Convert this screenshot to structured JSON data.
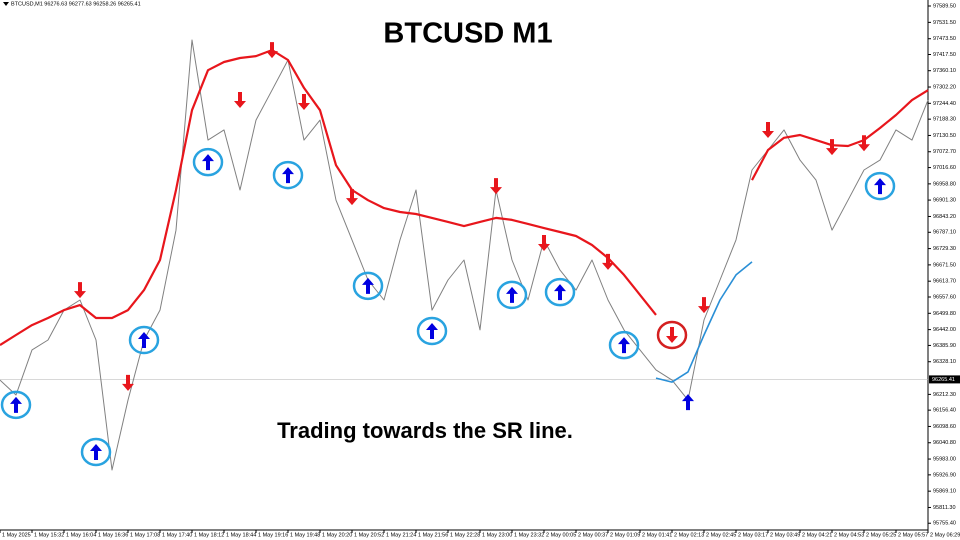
{
  "chart_data": {
    "type": "line",
    "header": "BTCUSD,M1 96276.63 96277.63 96258.26 96265.41",
    "title": "BTCUSD M1",
    "annotation": "Trading towards the SR line.",
    "categories": [
      "1 May 2025",
      null,
      "1 May 15:32",
      null,
      "1 May 16:04",
      null,
      "1 May 16:36",
      null,
      "1 May 17:08",
      null,
      "1 May 17:40",
      null,
      "1 May 18:12",
      null,
      "1 May 18:44",
      null,
      "1 May 19:16",
      null,
      "1 May 19:48",
      null,
      "1 May 20:20",
      null,
      "1 May 20:52",
      null,
      "1 May 21:24",
      null,
      "1 May 21:56",
      null,
      "1 May 22:28",
      null,
      "1 May 23:00",
      null,
      "1 May 23:32",
      null,
      "2 May 00:05",
      null,
      "2 May 00:37",
      null,
      "2 May 01:09",
      null,
      "2 May 01:41",
      null,
      "2 May 02:13",
      null,
      "2 May 02:45",
      null,
      "2 May 03:17",
      null,
      "2 May 03:49",
      null,
      "2 May 04:21",
      null,
      "2 May 04:53",
      null,
      "2 May 05:25",
      null,
      "2 May 05:57",
      null,
      "2 May 06:29"
    ],
    "series": [
      {
        "name": "BTCUSD",
        "color": "#808080",
        "values": [
          96263,
          96210,
          96370,
          96405,
          96511,
          96547,
          96405,
          95944,
          96192,
          96405,
          96511,
          96795,
          97469,
          97114,
          97150,
          96937,
          97185,
          97291,
          97398,
          97114,
          97185,
          96901,
          96760,
          96618,
          96547,
          96760,
          96937,
          96511,
          96618,
          96689,
          96441,
          96937,
          96689,
          96547,
          96760,
          96653,
          96582,
          96689,
          96547,
          96441,
          96370,
          96299,
          96263,
          96192,
          96476,
          96618,
          96760,
          97008,
          97079,
          97150,
          97043,
          96972,
          96795,
          96901,
          97008,
          97043,
          97150,
          97114,
          97256
        ]
      },
      {
        "name": "SR line",
        "color": "#e8161c",
        "values": [
          96387,
          96423,
          96458,
          96483,
          96511,
          96529,
          96483,
          96483,
          96511,
          96582,
          96689,
          96937,
          97220,
          97362,
          97391,
          97405,
          97412,
          97433,
          97398,
          97299,
          97220,
          97025,
          96937,
          96901,
          96873,
          96859,
          96852,
          96838,
          96824,
          96809,
          96824,
          96838,
          96831,
          96817,
          96802,
          96788,
          96774,
          96742,
          96696,
          96636,
          96565,
          96494,
          null,
          null,
          null,
          null,
          null,
          96972,
          97079,
          97122,
          97132,
          97114,
          97096,
          97093,
          97114,
          97157,
          97203,
          97256,
          97291
        ]
      },
      {
        "name": "Trend",
        "color": "#2a8fd6",
        "values": [
          null,
          null,
          null,
          null,
          null,
          null,
          null,
          null,
          null,
          null,
          null,
          null,
          null,
          null,
          null,
          null,
          null,
          null,
          null,
          null,
          null,
          null,
          null,
          null,
          null,
          null,
          null,
          null,
          null,
          null,
          null,
          null,
          null,
          null,
          null,
          null,
          null,
          null,
          null,
          null,
          null,
          96270,
          96256,
          96292,
          96423,
          96547,
          96636,
          96682,
          null,
          null,
          null,
          null,
          null,
          null,
          null,
          null,
          null,
          null,
          null
        ]
      }
    ],
    "signals": [
      {
        "direction": "up",
        "at": 1,
        "value": 96175,
        "color": "#0000e0",
        "ring": "#29a3e0"
      },
      {
        "direction": "up",
        "at": 6,
        "value": 96008,
        "color": "#0000e0",
        "ring": "#29a3e0"
      },
      {
        "direction": "up",
        "at": 9,
        "value": 96405,
        "color": "#0000e0",
        "ring": "#29a3e0"
      },
      {
        "direction": "up",
        "at": 13,
        "value": 97036,
        "color": "#0000e0",
        "ring": "#29a3e0"
      },
      {
        "direction": "up",
        "at": 18,
        "value": 96990,
        "color": "#0000e0",
        "ring": "#29a3e0"
      },
      {
        "direction": "up",
        "at": 23,
        "value": 96597,
        "color": "#0000e0",
        "ring": "#29a3e0"
      },
      {
        "direction": "up",
        "at": 27,
        "value": 96437,
        "color": "#0000e0",
        "ring": "#29a3e0"
      },
      {
        "direction": "up",
        "at": 32,
        "value": 96565,
        "color": "#0000e0",
        "ring": "#29a3e0"
      },
      {
        "direction": "up",
        "at": 35,
        "value": 96575,
        "color": "#0000e0",
        "ring": "#29a3e0"
      },
      {
        "direction": "up",
        "at": 39,
        "value": 96387,
        "color": "#0000e0",
        "ring": "#29a3e0"
      },
      {
        "direction": "up",
        "at": 43,
        "value": 96185,
        "color": "#0000e0"
      },
      {
        "direction": "up",
        "at": 55,
        "value": 96951,
        "color": "#0000e0",
        "ring": "#29a3e0"
      },
      {
        "direction": "down",
        "at": 5,
        "value": 96582,
        "color": "#e8161c"
      },
      {
        "direction": "down",
        "at": 8,
        "value": 96253,
        "color": "#e8161c"
      },
      {
        "direction": "down",
        "at": 15,
        "value": 97256,
        "color": "#e8161c"
      },
      {
        "direction": "down",
        "at": 17,
        "value": 97433,
        "color": "#e8161c"
      },
      {
        "direction": "down",
        "at": 19,
        "value": 97249,
        "color": "#e8161c"
      },
      {
        "direction": "down",
        "at": 22,
        "value": 96912,
        "color": "#e8161c"
      },
      {
        "direction": "down",
        "at": 31,
        "value": 96951,
        "color": "#e8161c"
      },
      {
        "direction": "down",
        "at": 34,
        "value": 96749,
        "color": "#e8161c"
      },
      {
        "direction": "down",
        "at": 38,
        "value": 96682,
        "color": "#e8161c"
      },
      {
        "direction": "down",
        "at": 42,
        "value": 96423,
        "color": "#e8161c",
        "ring": "#d42020"
      },
      {
        "direction": "down",
        "at": 44,
        "value": 96529,
        "color": "#e8161c"
      },
      {
        "direction": "down",
        "at": 48,
        "value": 97150,
        "color": "#e8161c"
      },
      {
        "direction": "down",
        "at": 52,
        "value": 97089,
        "color": "#e8161c"
      },
      {
        "direction": "down",
        "at": 54,
        "value": 97103,
        "color": "#e8161c"
      }
    ],
    "current_price": {
      "value": 96265.41,
      "label": "96265.41"
    },
    "ylim": [
      95731.4,
      97610.8
    ],
    "yticks": [
      {
        "value": 97589.5,
        "label": "97589.50"
      },
      {
        "value": 97531.5,
        "label": "97531.50"
      },
      {
        "value": 97473.5,
        "label": "97473.50"
      },
      {
        "value": 97417.5,
        "label": "97417.50"
      },
      {
        "value": 97360.1,
        "label": "97360.10"
      },
      {
        "value": 97302.2,
        "label": "97302.20"
      },
      {
        "value": 97244.4,
        "label": "97244.40"
      },
      {
        "value": 97188.3,
        "label": "97188.30"
      },
      {
        "value": 97130.5,
        "label": "97130.50"
      },
      {
        "value": 97072.7,
        "label": "97072.70"
      },
      {
        "value": 97016.6,
        "label": "97016.60"
      },
      {
        "value": 96958.8,
        "label": "96958.80"
      },
      {
        "value": 96901.3,
        "label": "96901.30"
      },
      {
        "value": 96843.2,
        "label": "96843.20"
      },
      {
        "value": 96787.1,
        "label": "96787.10"
      },
      {
        "value": 96729.3,
        "label": "96729.30"
      },
      {
        "value": 96671.5,
        "label": "96671.50"
      },
      {
        "value": 96613.7,
        "label": "96613.70"
      },
      {
        "value": 96557.6,
        "label": "96557.60"
      },
      {
        "value": 96499.8,
        "label": "96499.80"
      },
      {
        "value": 96442,
        "label": "96442.00"
      },
      {
        "value": 96385.9,
        "label": "96385.90"
      },
      {
        "value": 96328.1,
        "label": "96328.10"
      },
      {
        "value": 96212.3,
        "label": "96212.30"
      },
      {
        "value": 96156.4,
        "label": "96156.40"
      },
      {
        "value": 96098.6,
        "label": "96098.60"
      },
      {
        "value": 96040.8,
        "label": "96040.80"
      },
      {
        "value": 95983,
        "label": "95983.00"
      },
      {
        "value": 95926.9,
        "label": "95926.90"
      },
      {
        "value": 95869.1,
        "label": "95869.10"
      },
      {
        "value": 95811.3,
        "label": "95811.30"
      },
      {
        "value": 95755.4,
        "label": "95755.40"
      }
    ]
  }
}
